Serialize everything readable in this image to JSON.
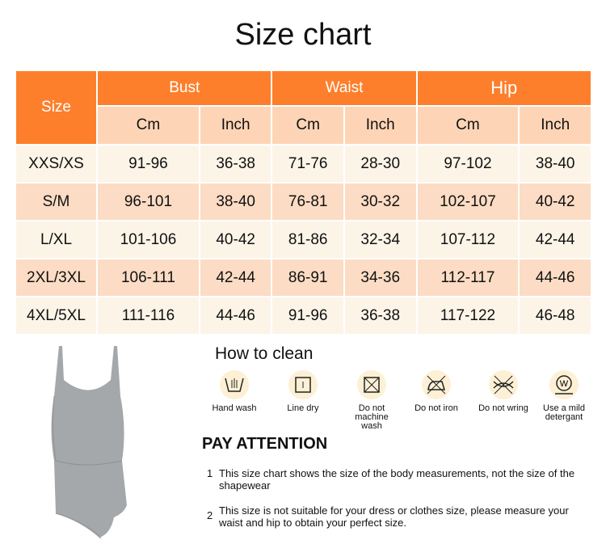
{
  "title": "Size chart",
  "table": {
    "size_header": "Size",
    "groups": [
      "Bust",
      "Waist",
      "Hip"
    ],
    "units": [
      "Cm",
      "Inch",
      "Cm",
      "Inch",
      "Cm",
      "Inch"
    ],
    "rows": [
      [
        "XXS/XS",
        "91-96",
        "36-38",
        "71-76",
        "28-30",
        "97-102",
        "38-40"
      ],
      [
        "S/M",
        "96-101",
        "38-40",
        "76-81",
        "30-32",
        "102-107",
        "40-42"
      ],
      [
        "L/XL",
        "101-106",
        "40-42",
        "81-86",
        "32-34",
        "107-112",
        "42-44"
      ],
      [
        "2XL/3XL",
        "106-111",
        "42-44",
        "86-91",
        "34-36",
        "112-117",
        "44-46"
      ],
      [
        "4XL/5XL",
        "111-116",
        "44-46",
        "91-96",
        "36-38",
        "117-122",
        "46-48"
      ]
    ]
  },
  "colors": {
    "header": "#fd7f2c",
    "subheader": "#fdd5b6",
    "row_light": "#fdf4e8",
    "row_dark": "#fcdcc4"
  },
  "clean": {
    "title": "How to clean",
    "items": [
      {
        "icon": "hand-wash-icon",
        "label": "Hand wash"
      },
      {
        "icon": "line-dry-icon",
        "label": "Line dry"
      },
      {
        "icon": "no-machine-wash-icon",
        "label": "Do not machine wash"
      },
      {
        "icon": "no-iron-icon",
        "label": "Do not iron"
      },
      {
        "icon": "no-wring-icon",
        "label": "Do not wring"
      },
      {
        "icon": "mild-detergent-icon",
        "label": "Use a mild detergant"
      }
    ]
  },
  "attention": {
    "title": "PAY ATTENTION",
    "notes": [
      {
        "num": "1",
        "text": "This size chart shows the size of the body measurements, not the size of the shapewear"
      },
      {
        "num": "2",
        "text": "This size is not suitable for your dress or clothes size, please measure your waist and hip to obtain your perfect size."
      }
    ]
  }
}
